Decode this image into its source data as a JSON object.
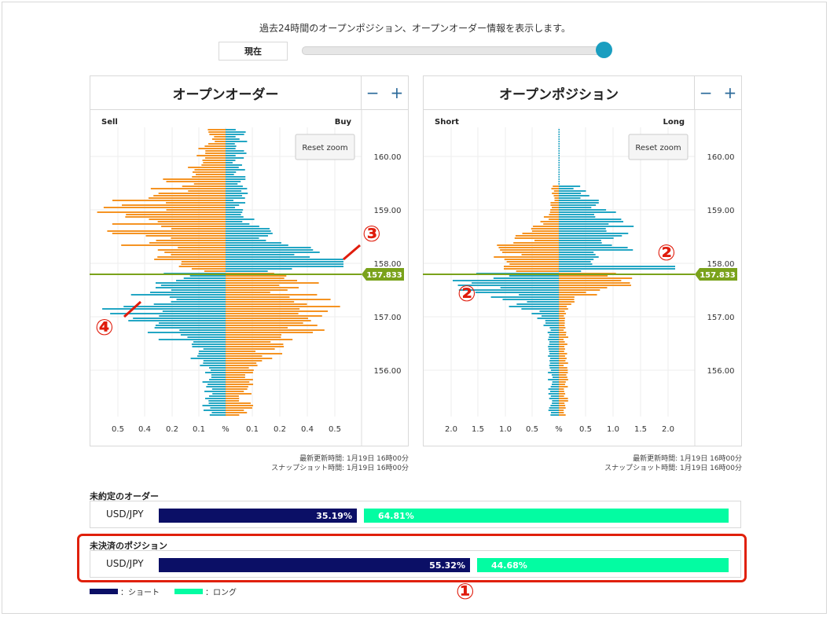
{
  "header": {
    "intro": "過去24時間のオープンポジション、オープンオーダー情報を表示します。",
    "now_label": "現在"
  },
  "slider": {
    "value_fraction": 1.0
  },
  "colors": {
    "cyan": "#23a6c4",
    "orange": "#f59322",
    "current_line": "#7aa21b",
    "short_bar": "#0b0f66",
    "long_bar": "#03fca2",
    "annotation": "#e01c0c"
  },
  "current_price": "157.833",
  "order_book": {
    "title": "オープンオーダー",
    "zoom_minus": "−",
    "zoom_plus": "+",
    "reset_zoom": "Reset zoom",
    "left_label": "Sell",
    "right_label": "Buy",
    "x_ticks": [
      "0.5",
      "0.4",
      "0.2",
      "0.1",
      "%",
      "0.1",
      "0.2",
      "0.4",
      "0.5"
    ],
    "y_ticks": [
      "160.00",
      "159.00",
      "158.00",
      "157.00",
      "156.00"
    ],
    "updated": "最新更新時間: 1月19日 16時00分",
    "snapshot": "スナップショット時間: 1月19日 16時00分"
  },
  "position_book": {
    "title": "オープンポジション",
    "zoom_minus": "−",
    "zoom_plus": "+",
    "reset_zoom": "Reset zoom",
    "left_label": "Short",
    "right_label": "Long",
    "x_ticks": [
      "2.0",
      "1.5",
      "1.0",
      "0.5",
      "%",
      "0.5",
      "1.0",
      "1.5",
      "2.0"
    ],
    "y_ticks": [
      "160.00",
      "159.00",
      "158.00",
      "157.00",
      "156.00"
    ],
    "updated": "最新更新時間: 1月19日 16時00分",
    "snapshot": "スナップショット時間: 1月19日 16時00分"
  },
  "pending_orders": {
    "title": "未約定のオーダー",
    "pair": "USD/JPY",
    "short_pct": "35.19%",
    "long_pct": "64.81%",
    "short_value": 35.19
  },
  "open_positions": {
    "title": "未決済のポジション",
    "pair": "USD/JPY",
    "short_pct": "55.32%",
    "long_pct": "44.68%",
    "short_value": 55.32
  },
  "legend": {
    "short": "：ショート",
    "long": "：ロング"
  },
  "annotations": [
    "①",
    "②",
    "②",
    "③",
    "④"
  ]
}
